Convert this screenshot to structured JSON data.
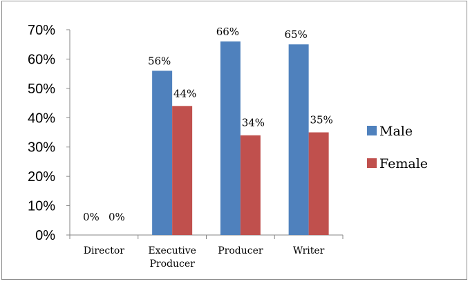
{
  "chart_data": {
    "type": "bar",
    "title": "",
    "xlabel": "",
    "ylabel": "",
    "categories": [
      "Director",
      "Executive Producer",
      "Producer",
      "Writer"
    ],
    "category_labels": [
      [
        "Director"
      ],
      [
        "Executive",
        "Producer"
      ],
      [
        "Producer"
      ],
      [
        "Writer"
      ]
    ],
    "series": [
      {
        "name": "Male",
        "color": "#4f81bd",
        "values": [
          0,
          56,
          66,
          65
        ],
        "labels": [
          "0%",
          "56%",
          "66%",
          "65%"
        ]
      },
      {
        "name": "Female",
        "color": "#c0504d",
        "values": [
          0,
          44,
          34,
          35
        ],
        "labels": [
          "0%",
          "44%",
          "34%",
          "35%"
        ]
      }
    ],
    "ylim": [
      0,
      70
    ],
    "yticks": [
      0,
      10,
      20,
      30,
      40,
      50,
      60,
      70
    ],
    "ytick_labels": [
      "0%",
      "10%",
      "20%",
      "30%",
      "40%",
      "50%",
      "60%",
      "70%"
    ],
    "grid": false,
    "legend_position": "right"
  }
}
